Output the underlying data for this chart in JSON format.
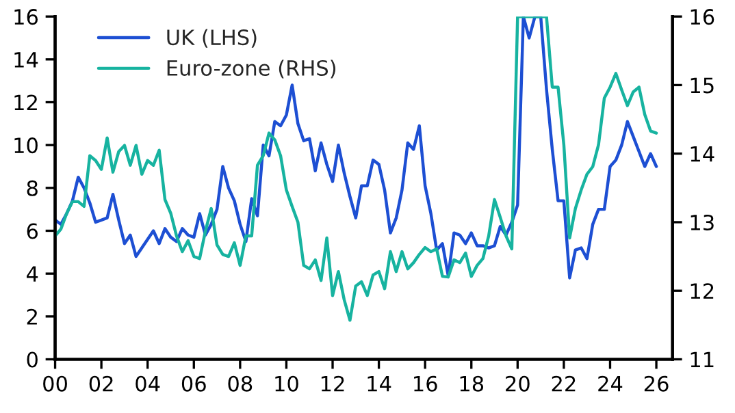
{
  "chart_data": {
    "type": "line",
    "xlim": [
      2000,
      2026.7
    ],
    "xticks": [
      {
        "value": 2000,
        "label": "00"
      },
      {
        "value": 2002,
        "label": "02"
      },
      {
        "value": 2004,
        "label": "04"
      },
      {
        "value": 2006,
        "label": "06"
      },
      {
        "value": 2008,
        "label": "08"
      },
      {
        "value": 2010,
        "label": "10"
      },
      {
        "value": 2012,
        "label": "12"
      },
      {
        "value": 2014,
        "label": "14"
      },
      {
        "value": 2016,
        "label": "16"
      },
      {
        "value": 2018,
        "label": "18"
      },
      {
        "value": 2020,
        "label": "20"
      },
      {
        "value": 2022,
        "label": "22"
      },
      {
        "value": 2024,
        "label": "24"
      },
      {
        "value": 2026,
        "label": "26"
      }
    ],
    "ylim": [
      0,
      16
    ],
    "yticks": [
      0,
      2,
      4,
      6,
      8,
      10,
      12,
      14,
      16
    ],
    "y2lim": [
      11,
      16
    ],
    "y2ticks": [
      11,
      12,
      13,
      14,
      15,
      16
    ],
    "grid": false,
    "legend": "top left",
    "marker": "none",
    "line_style": "solid",
    "series": [
      {
        "name": "UK (LHS)",
        "color": "#1d4fd3",
        "x": [
          2000,
          2000.25,
          2000.5,
          2000.75,
          2001,
          2001.25,
          2001.5,
          2001.75,
          2002,
          2002.25,
          2002.5,
          2002.75,
          2003,
          2003.25,
          2003.5,
          2003.75,
          2004,
          2004.25,
          2004.5,
          2004.75,
          2005,
          2005.25,
          2005.5,
          2005.75,
          2006,
          2006.25,
          2006.5,
          2006.75,
          2007,
          2007.25,
          2007.5,
          2007.75,
          2008,
          2008.25,
          2008.5,
          2008.75,
          2009,
          2009.25,
          2009.5,
          2009.75,
          2010,
          2010.25,
          2010.5,
          2010.75,
          2011,
          2011.25,
          2011.5,
          2011.75,
          2012,
          2012.25,
          2012.5,
          2012.75,
          2013,
          2013.25,
          2013.5,
          2013.75,
          2014,
          2014.25,
          2014.5,
          2014.75,
          2015,
          2015.25,
          2015.5,
          2015.75,
          2016,
          2016.25,
          2016.5,
          2016.75,
          2017,
          2017.25,
          2017.5,
          2017.75,
          2018,
          2018.25,
          2018.5,
          2018.75,
          2019,
          2019.25,
          2019.5,
          2019.75,
          2020,
          2020.25,
          2020.5,
          2020.75,
          2021,
          2021.25,
          2021.5,
          2021.75,
          2022,
          2022.25,
          2022.5,
          2022.75,
          2023,
          2023.25,
          2023.5,
          2023.75,
          2024,
          2024.25,
          2024.5,
          2024.75,
          2025,
          2025.25,
          2025.5,
          2025.75,
          2026
        ],
        "values": [
          6.5,
          6.3,
          6.8,
          7.4,
          8.5,
          8.0,
          7.3,
          6.4,
          6.5,
          6.6,
          7.7,
          6.5,
          5.4,
          5.8,
          4.8,
          5.2,
          5.6,
          6.0,
          5.4,
          6.1,
          5.7,
          5.5,
          6.1,
          5.8,
          5.7,
          6.8,
          5.8,
          6.3,
          7.0,
          9.0,
          8.0,
          7.4,
          6.3,
          5.5,
          7.5,
          6.7,
          10.0,
          9.5,
          11.1,
          10.9,
          11.4,
          12.8,
          11.0,
          10.2,
          10.3,
          8.8,
          10.1,
          9.1,
          8.3,
          10.0,
          8.7,
          7.6,
          6.6,
          8.1,
          8.1,
          9.3,
          9.1,
          7.9,
          5.9,
          6.6,
          7.9,
          10.1,
          9.8,
          10.9,
          8.1,
          6.8,
          5.1,
          5.4,
          3.9,
          5.9,
          5.8,
          5.4,
          5.9,
          5.3,
          5.3,
          5.2,
          5.3,
          6.2,
          5.8,
          6.4,
          7.2,
          16,
          15.0,
          16,
          16,
          12.6,
          9.8,
          7.4,
          7.4,
          3.8,
          5.1,
          5.2,
          4.7,
          6.3,
          7.0,
          7.0,
          9.0,
          9.3,
          10.0,
          11.1,
          10.4,
          9.7,
          9.0,
          9.6,
          9.0
        ]
      },
      {
        "name": "Euro-zone (RHS)",
        "color": "#17b3a0",
        "axis": "y2",
        "x": [
          2000,
          2000.25,
          2000.5,
          2000.75,
          2001,
          2001.25,
          2001.5,
          2001.75,
          2002,
          2002.25,
          2002.5,
          2002.75,
          2003,
          2003.25,
          2003.5,
          2003.75,
          2004,
          2004.25,
          2004.5,
          2004.75,
          2005,
          2005.25,
          2005.5,
          2005.75,
          2006,
          2006.25,
          2006.5,
          2006.75,
          2007,
          2007.25,
          2007.5,
          2007.75,
          2008,
          2008.25,
          2008.5,
          2008.75,
          2009,
          2009.25,
          2009.5,
          2009.75,
          2010,
          2010.25,
          2010.5,
          2010.75,
          2011,
          2011.25,
          2011.5,
          2011.75,
          2012,
          2012.25,
          2012.5,
          2012.75,
          2013,
          2013.25,
          2013.5,
          2013.75,
          2014,
          2014.25,
          2014.5,
          2014.75,
          2015,
          2015.25,
          2015.5,
          2015.75,
          2016,
          2016.25,
          2016.5,
          2016.75,
          2017,
          2017.25,
          2017.5,
          2017.75,
          2018,
          2018.25,
          2018.5,
          2018.75,
          2019,
          2019.25,
          2019.5,
          2019.75,
          2020,
          2020.25,
          2020.5,
          2020.75,
          2021,
          2021.25,
          2021.5,
          2021.75,
          2022,
          2022.25,
          2022.5,
          2022.75,
          2023,
          2023.25,
          2023.5,
          2023.75,
          2024,
          2024.25,
          2024.5,
          2024.75,
          2025,
          2025.25,
          2025.5,
          2025.75,
          2026
        ],
        "values": [
          12.8,
          12.9,
          13.13,
          13.3,
          13.3,
          13.23,
          13.97,
          13.9,
          13.77,
          14.23,
          13.73,
          14.03,
          14.12,
          13.83,
          14.12,
          13.7,
          13.9,
          13.83,
          14.05,
          13.33,
          13.13,
          12.8,
          12.57,
          12.73,
          12.5,
          12.47,
          12.87,
          13.2,
          12.67,
          12.53,
          12.5,
          12.7,
          12.37,
          12.8,
          12.8,
          13.83,
          13.97,
          14.3,
          14.2,
          13.97,
          13.47,
          13.23,
          13.0,
          12.37,
          12.32,
          12.45,
          12.15,
          12.77,
          11.93,
          12.28,
          11.87,
          11.57,
          12.07,
          12.13,
          11.93,
          12.23,
          12.28,
          12.03,
          12.57,
          12.28,
          12.57,
          12.32,
          12.41,
          12.53,
          12.63,
          12.57,
          12.61,
          12.21,
          12.2,
          12.45,
          12.41,
          12.55,
          12.21,
          12.37,
          12.47,
          12.8,
          13.33,
          13.07,
          12.8,
          12.61,
          16,
          16,
          16,
          16,
          16,
          16,
          14.97,
          14.97,
          14.13,
          12.77,
          13.2,
          13.47,
          13.7,
          13.81,
          14.13,
          14.81,
          14.97,
          15.17,
          14.93,
          14.7,
          14.9,
          14.97,
          14.57,
          14.33,
          14.3
        ]
      }
    ]
  }
}
